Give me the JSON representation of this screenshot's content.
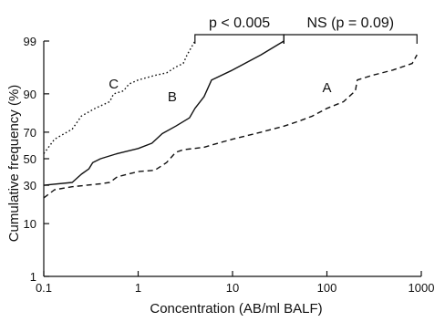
{
  "chart_data": {
    "type": "line",
    "xlabel": "Concentration (AB/ml BALF)",
    "ylabel": "Cumulative frequency (%)",
    "x_scale": "log",
    "y_scale": "probability",
    "xlim": [
      0.1,
      1000
    ],
    "ylim": [
      1,
      99
    ],
    "x_ticks": [
      0.1,
      1,
      10,
      100,
      1000
    ],
    "x_tick_labels": [
      "0.1",
      "1",
      "10",
      "100",
      "1000"
    ],
    "y_ticks": [
      1,
      10,
      30,
      50,
      70,
      90,
      99
    ],
    "y_tick_labels": [
      "1",
      "10",
      "30",
      "50",
      "70",
      "90",
      "99"
    ],
    "series": [
      {
        "name": "A",
        "style": "dashed",
        "points": [
          [
            0.1,
            22
          ],
          [
            0.13,
            27
          ],
          [
            0.2,
            29
          ],
          [
            0.4,
            31
          ],
          [
            0.5,
            32
          ],
          [
            0.6,
            36
          ],
          [
            1.0,
            40
          ],
          [
            1.5,
            41
          ],
          [
            2.0,
            47
          ],
          [
            2.5,
            55
          ],
          [
            3.0,
            57
          ],
          [
            5.0,
            59
          ],
          [
            7.0,
            62
          ],
          [
            10,
            65
          ],
          [
            20,
            70
          ],
          [
            35,
            74
          ],
          [
            50,
            77
          ],
          [
            70,
            80
          ],
          [
            100,
            84
          ],
          [
            150,
            87
          ],
          [
            200,
            91
          ],
          [
            210,
            94
          ],
          [
            300,
            95
          ],
          [
            500,
            96
          ],
          [
            800,
            97
          ],
          [
            900,
            98
          ]
        ]
      },
      {
        "name": "B",
        "style": "solid",
        "points": [
          [
            0.1,
            30
          ],
          [
            0.2,
            32
          ],
          [
            0.25,
            38
          ],
          [
            0.3,
            42
          ],
          [
            0.33,
            47
          ],
          [
            0.4,
            50
          ],
          [
            0.6,
            54
          ],
          [
            1.0,
            58
          ],
          [
            1.4,
            62
          ],
          [
            1.8,
            69
          ],
          [
            2.5,
            74
          ],
          [
            3.5,
            79
          ],
          [
            4.0,
            84
          ],
          [
            5.0,
            89
          ],
          [
            6.0,
            94
          ],
          [
            10,
            96
          ],
          [
            20,
            98
          ],
          [
            35,
            99
          ]
        ]
      },
      {
        "name": "C",
        "style": "dotted",
        "points": [
          [
            0.1,
            54
          ],
          [
            0.13,
            65
          ],
          [
            0.2,
            72
          ],
          [
            0.25,
            80
          ],
          [
            0.35,
            84
          ],
          [
            0.5,
            87
          ],
          [
            0.55,
            90
          ],
          [
            0.7,
            91
          ],
          [
            0.8,
            93
          ],
          [
            1.0,
            94
          ],
          [
            1.5,
            95
          ],
          [
            2.0,
            95.5
          ],
          [
            2.5,
            96.5
          ],
          [
            3.0,
            97
          ],
          [
            3.3,
            98
          ],
          [
            4.0,
            99
          ]
        ]
      }
    ],
    "series_labels": [
      {
        "text": "A",
        "x": 100,
        "y": 92
      },
      {
        "text": "B",
        "x": 2.3,
        "y": 89
      },
      {
        "text": "C",
        "x": 0.55,
        "y": 93
      }
    ],
    "annotations": [
      {
        "text": "p < 0.005",
        "x_from": 4.0,
        "x_to": 35
      },
      {
        "text": "NS (p = 0.09)",
        "x_from": 35,
        "x_to": 900
      }
    ]
  }
}
